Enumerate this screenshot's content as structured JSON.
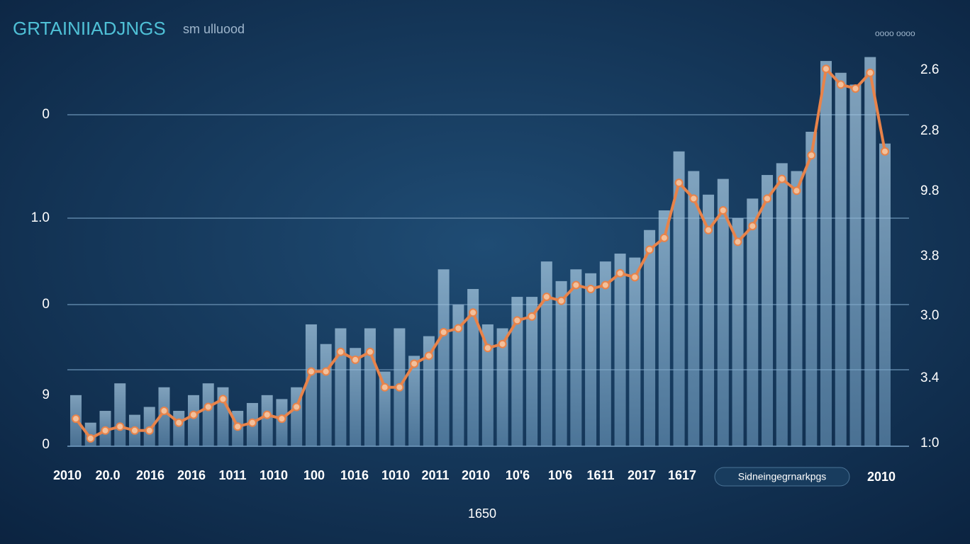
{
  "chart_data": {
    "type": "bar-line",
    "title": "GRTAINIIADJNGS",
    "subtitle": "sm ulluood",
    "corner_note": "oooo oooo",
    "left_axis_labels": [
      "0",
      "1.0",
      "0",
      "9",
      "0"
    ],
    "right_axis_labels": [
      "2.6",
      "2.8",
      "9.8",
      "3.8",
      "3.0",
      "3.4",
      "1:0"
    ],
    "x_labels": [
      "2010",
      "20.0",
      "2016",
      "2016",
      "1011",
      "1010",
      "100",
      "1016",
      "1010",
      "2011",
      "2010",
      "10'6",
      "10'6",
      "1611",
      "2017",
      "1617"
    ],
    "badge": "Sidneingegrnarkpgs",
    "last_x_label": "2010",
    "x_title": "1650",
    "ylim": [
      0,
      100
    ],
    "series": [
      {
        "kind": "bar",
        "color": "#8fb8d6",
        "values": [
          13,
          6,
          9,
          16,
          8,
          10,
          15,
          9,
          13,
          16,
          15,
          9,
          11,
          13,
          12,
          15,
          31,
          26,
          30,
          25,
          30,
          19,
          30,
          23,
          28,
          45,
          36,
          40,
          31,
          30,
          38,
          38,
          47,
          42,
          45,
          44,
          47,
          49,
          48,
          55,
          60,
          75,
          70,
          64,
          68,
          58,
          63,
          69,
          72,
          70,
          80,
          98,
          95,
          92,
          99,
          77
        ]
      },
      {
        "kind": "line",
        "color": "#e8834a",
        "values": [
          7,
          2,
          4,
          5,
          4,
          4,
          9,
          6,
          8,
          10,
          12,
          5,
          6,
          8,
          7,
          10,
          19,
          19,
          24,
          22,
          24,
          15,
          15,
          21,
          23,
          29,
          30,
          34,
          25,
          26,
          32,
          33,
          38,
          37,
          41,
          40,
          41,
          44,
          43,
          50,
          53,
          67,
          63,
          55,
          60,
          52,
          56,
          63,
          68,
          65,
          74,
          96,
          92,
          91,
          95,
          75
        ]
      }
    ]
  }
}
